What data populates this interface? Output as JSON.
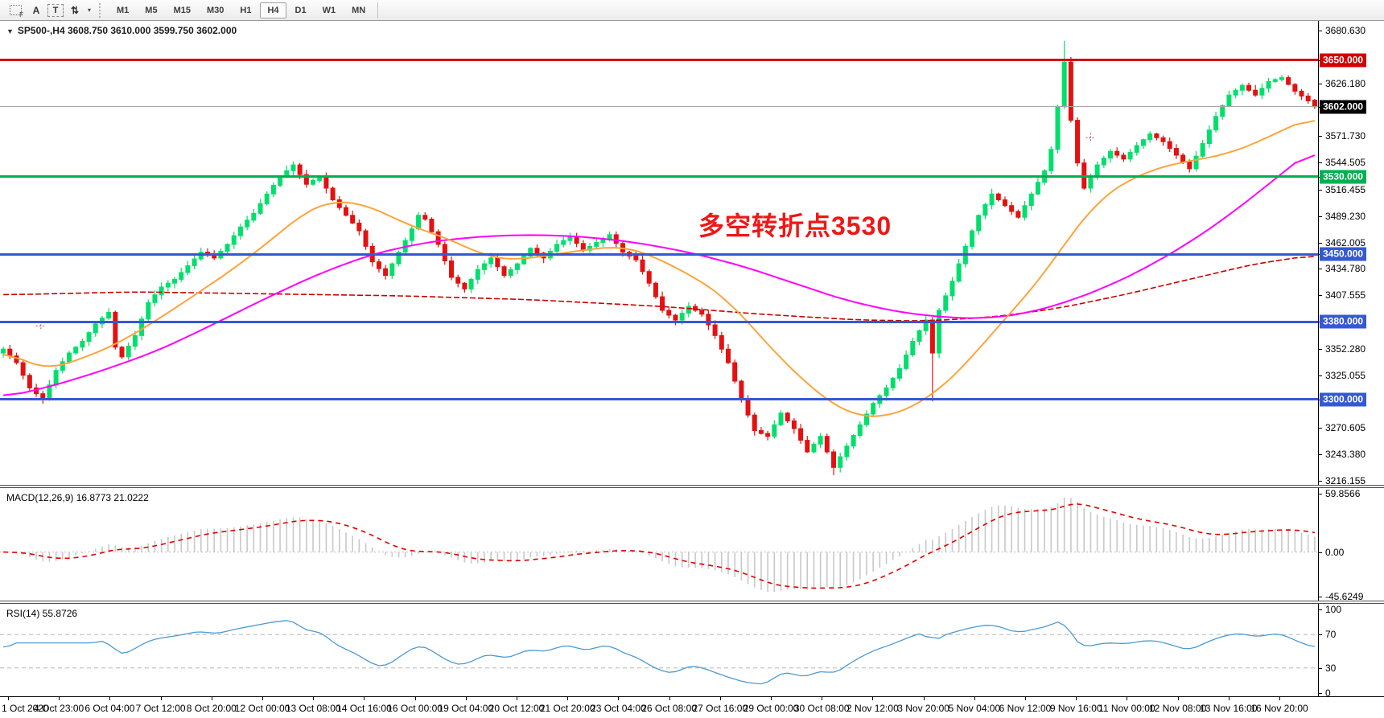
{
  "toolbar": {
    "icon_f": "F",
    "icon_a": "A",
    "icon_t": "T",
    "icon_arrows": "⇅",
    "caret": "▾",
    "timeframes": [
      {
        "label": "M1",
        "active": false
      },
      {
        "label": "M5",
        "active": false
      },
      {
        "label": "M15",
        "active": false
      },
      {
        "label": "M30",
        "active": false
      },
      {
        "label": "H1",
        "active": false
      },
      {
        "label": "H4",
        "active": true
      },
      {
        "label": "D1",
        "active": false
      },
      {
        "label": "W1",
        "active": false
      },
      {
        "label": "MN",
        "active": false
      }
    ]
  },
  "chart": {
    "title_triangle": "▼",
    "title": "SP500-,H4  3608.750 3610.000 3599.750 3602.000",
    "annotation": {
      "text": "多空转折点3530",
      "color": "#f01717"
    }
  },
  "chart_data": {
    "type": "candlestick",
    "symbol": "SP500-",
    "timeframe": "H4",
    "bars": 200,
    "ylim": [
      3211.2,
      3690.5
    ],
    "ohlc_current": {
      "open": 3608.75,
      "high": 3610.0,
      "low": 3599.75,
      "close": 3602.0
    },
    "colors": {
      "bull": "#00df6c",
      "bear": "#e41111",
      "ma_fast": "#ffa33c",
      "ma_mid": "#ff00ff",
      "ma_slow": "#cc0000",
      "macd_hist": "#c8c8c8",
      "macd_signal": "#e00000",
      "rsi_line": "#4a9ad4",
      "line_red": "#d40000",
      "line_green": "#00b050",
      "line_blue": "#3558d4",
      "line_current": "#a8a8a8"
    },
    "close_anchors": [
      [
        0,
        3352
      ],
      [
        2,
        3338
      ],
      [
        4,
        3312
      ],
      [
        6,
        3300
      ],
      [
        8,
        3330
      ],
      [
        10,
        3348
      ],
      [
        12,
        3360
      ],
      [
        14,
        3378
      ],
      [
        16,
        3390
      ],
      [
        17,
        3354
      ],
      [
        18,
        3344
      ],
      [
        20,
        3366
      ],
      [
        22,
        3400
      ],
      [
        24,
        3416
      ],
      [
        26,
        3424
      ],
      [
        28,
        3438
      ],
      [
        30,
        3452
      ],
      [
        32,
        3446
      ],
      [
        34,
        3460
      ],
      [
        36,
        3478
      ],
      [
        38,
        3492
      ],
      [
        40,
        3512
      ],
      [
        42,
        3530
      ],
      [
        44,
        3542
      ],
      [
        45,
        3532
      ],
      [
        46,
        3522
      ],
      [
        48,
        3530
      ],
      [
        50,
        3506
      ],
      [
        52,
        3490
      ],
      [
        54,
        3474
      ],
      [
        56,
        3442
      ],
      [
        58,
        3428
      ],
      [
        60,
        3452
      ],
      [
        62,
        3476
      ],
      [
        63,
        3490
      ],
      [
        64,
        3486
      ],
      [
        66,
        3460
      ],
      [
        68,
        3426
      ],
      [
        70,
        3414
      ],
      [
        72,
        3434
      ],
      [
        74,
        3446
      ],
      [
        76,
        3428
      ],
      [
        78,
        3440
      ],
      [
        80,
        3456
      ],
      [
        82,
        3446
      ],
      [
        84,
        3460
      ],
      [
        86,
        3468
      ],
      [
        88,
        3454
      ],
      [
        90,
        3462
      ],
      [
        92,
        3470
      ],
      [
        94,
        3452
      ],
      [
        96,
        3444
      ],
      [
        98,
        3420
      ],
      [
        100,
        3392
      ],
      [
        102,
        3382
      ],
      [
        104,
        3396
      ],
      [
        106,
        3388
      ],
      [
        108,
        3366
      ],
      [
        110,
        3338
      ],
      [
        112,
        3300
      ],
      [
        114,
        3268
      ],
      [
        116,
        3262
      ],
      [
        118,
        3286
      ],
      [
        120,
        3270
      ],
      [
        122,
        3246
      ],
      [
        124,
        3262
      ],
      [
        126,
        3230
      ],
      [
        128,
        3252
      ],
      [
        130,
        3274
      ],
      [
        132,
        3296
      ],
      [
        134,
        3312
      ],
      [
        136,
        3332
      ],
      [
        138,
        3360
      ],
      [
        140,
        3382
      ],
      [
        141,
        3348
      ],
      [
        142,
        3392
      ],
      [
        144,
        3422
      ],
      [
        146,
        3458
      ],
      [
        148,
        3490
      ],
      [
        150,
        3512
      ],
      [
        152,
        3500
      ],
      [
        154,
        3488
      ],
      [
        156,
        3512
      ],
      [
        158,
        3536
      ],
      [
        159,
        3558
      ],
      [
        160,
        3602
      ],
      [
        161,
        3648
      ],
      [
        162,
        3588
      ],
      [
        163,
        3544
      ],
      [
        164,
        3518
      ],
      [
        165,
        3530
      ],
      [
        166,
        3542
      ],
      [
        168,
        3556
      ],
      [
        170,
        3548
      ],
      [
        172,
        3562
      ],
      [
        174,
        3574
      ],
      [
        176,
        3566
      ],
      [
        178,
        3552
      ],
      [
        180,
        3538
      ],
      [
        182,
        3564
      ],
      [
        184,
        3592
      ],
      [
        186,
        3614
      ],
      [
        188,
        3624
      ],
      [
        190,
        3614
      ],
      [
        192,
        3628
      ],
      [
        194,
        3632
      ],
      [
        196,
        3618
      ],
      [
        198,
        3608
      ],
      [
        199,
        3602
      ]
    ],
    "wick_overrides": {
      "126": {
        "low": 3222
      },
      "141": {
        "low": 3298
      },
      "161": {
        "high": 3670
      }
    },
    "ma_fast_anchors": [
      [
        0,
        3352
      ],
      [
        6,
        3330
      ],
      [
        12,
        3342
      ],
      [
        18,
        3360
      ],
      [
        24,
        3385
      ],
      [
        30,
        3412
      ],
      [
        36,
        3440
      ],
      [
        42,
        3472
      ],
      [
        46,
        3495
      ],
      [
        50,
        3505
      ],
      [
        54,
        3503
      ],
      [
        58,
        3492
      ],
      [
        62,
        3478
      ],
      [
        66,
        3470
      ],
      [
        70,
        3458
      ],
      [
        74,
        3446
      ],
      [
        78,
        3444
      ],
      [
        82,
        3448
      ],
      [
        86,
        3452
      ],
      [
        90,
        3456
      ],
      [
        94,
        3458
      ],
      [
        98,
        3450
      ],
      [
        102,
        3436
      ],
      [
        106,
        3422
      ],
      [
        110,
        3402
      ],
      [
        114,
        3372
      ],
      [
        118,
        3342
      ],
      [
        122,
        3316
      ],
      [
        126,
        3294
      ],
      [
        130,
        3282
      ],
      [
        134,
        3282
      ],
      [
        138,
        3292
      ],
      [
        142,
        3310
      ],
      [
        146,
        3336
      ],
      [
        150,
        3368
      ],
      [
        154,
        3398
      ],
      [
        158,
        3430
      ],
      [
        162,
        3470
      ],
      [
        166,
        3504
      ],
      [
        170,
        3524
      ],
      [
        174,
        3536
      ],
      [
        178,
        3544
      ],
      [
        182,
        3548
      ],
      [
        186,
        3554
      ],
      [
        190,
        3564
      ],
      [
        194,
        3578
      ],
      [
        197,
        3586
      ],
      [
        199,
        3592
      ]
    ],
    "ma_mid_anchors": [
      [
        0,
        3302
      ],
      [
        8,
        3315
      ],
      [
        16,
        3332
      ],
      [
        24,
        3352
      ],
      [
        32,
        3378
      ],
      [
        40,
        3405
      ],
      [
        48,
        3430
      ],
      [
        56,
        3450
      ],
      [
        64,
        3462
      ],
      [
        72,
        3468
      ],
      [
        80,
        3470
      ],
      [
        88,
        3468
      ],
      [
        96,
        3462
      ],
      [
        104,
        3452
      ],
      [
        112,
        3438
      ],
      [
        120,
        3420
      ],
      [
        128,
        3402
      ],
      [
        136,
        3390
      ],
      [
        144,
        3384
      ],
      [
        150,
        3384
      ],
      [
        156,
        3390
      ],
      [
        162,
        3402
      ],
      [
        168,
        3418
      ],
      [
        174,
        3438
      ],
      [
        180,
        3462
      ],
      [
        186,
        3490
      ],
      [
        192,
        3522
      ],
      [
        196,
        3544
      ],
      [
        199,
        3560
      ]
    ],
    "ma_slow_anchors": [
      [
        0,
        3408
      ],
      [
        20,
        3411
      ],
      [
        40,
        3409
      ],
      [
        60,
        3407
      ],
      [
        80,
        3403
      ],
      [
        100,
        3396
      ],
      [
        115,
        3388
      ],
      [
        130,
        3382
      ],
      [
        140,
        3381
      ],
      [
        150,
        3385
      ],
      [
        160,
        3394
      ],
      [
        170,
        3408
      ],
      [
        180,
        3424
      ],
      [
        190,
        3440
      ],
      [
        199,
        3449
      ]
    ],
    "cross_markers": [
      {
        "bar": 5.7,
        "price": 3376
      },
      {
        "bar": 165,
        "price": 3570
      }
    ],
    "y_axis_ticks": [
      "3680.630",
      "3626.180",
      "3571.730",
      "3544.505",
      "3516.455",
      "3489.230",
      "3462.005",
      "3434.780",
      "3407.555",
      "3352.280",
      "3325.055",
      "3270.605",
      "3243.380",
      "3216.155"
    ],
    "price_badges": [
      {
        "value": "3650.000",
        "price": 3650,
        "color": "#d40000"
      },
      {
        "value": "3602.000",
        "price": 3602,
        "color": "#000000"
      },
      {
        "value": "3530.000",
        "price": 3530,
        "color": "#00b050"
      },
      {
        "value": "3450.000",
        "price": 3450,
        "color": "#3558d4"
      },
      {
        "value": "3380.000",
        "price": 3380,
        "color": "#3558d4"
      },
      {
        "value": "3300.000",
        "price": 3300,
        "color": "#3558d4"
      }
    ],
    "hlines": [
      {
        "price": 3650,
        "color": "#d40000",
        "thickness": 3
      },
      {
        "price": 3602,
        "color": "#a8a8a8",
        "thickness": 1
      },
      {
        "price": 3530,
        "color": "#00b050",
        "thickness": 3
      },
      {
        "price": 3450,
        "color": "#3558d4",
        "thickness": 3
      },
      {
        "price": 3380,
        "color": "#3558d4",
        "thickness": 3
      },
      {
        "price": 3300,
        "color": "#3558d4",
        "thickness": 3
      }
    ],
    "macd": {
      "label": "MACD(12,26,9) 16.8773 21.0222",
      "fast": 12,
      "slow": 26,
      "signal": 9,
      "scale_max": 59.8566,
      "scale_min": -45.6249,
      "ticks": [
        {
          "text": "59.8566",
          "value": 59.8566
        },
        {
          "text": "0.00",
          "value": 0
        },
        {
          "text": "-45.6249",
          "value": -45.6249
        }
      ]
    },
    "rsi": {
      "label": "RSI(14) 55.8726",
      "period": 14,
      "ticks": [
        {
          "text": "100",
          "value": 100
        },
        {
          "text": "70",
          "value": 70
        },
        {
          "text": "30",
          "value": 30
        },
        {
          "text": "0",
          "value": 0
        }
      ],
      "levels": [
        70,
        30
      ]
    },
    "x_labels": [
      "1 Oct 2020",
      "4 Oct 23:00",
      "6 Oct 04:00",
      "7 Oct 12:00",
      "8 Oct 20:00",
      "12 Oct 00:00",
      "13 Oct 08:00",
      "14 Oct 16:00",
      "16 Oct 00:00",
      "19 Oct 04:00",
      "20 Oct 12:00",
      "21 Oct 20:00",
      "23 Oct 04:00",
      "26 Oct 08:00",
      "27 Oct 16:00",
      "29 Oct 00:00",
      "30 Oct 08:00",
      "2 Nov 12:00",
      "3 Nov 20:00",
      "5 Nov 04:00",
      "6 Nov 12:00",
      "9 Nov 16:00",
      "11 Nov 00:00",
      "12 Nov 08:00",
      "13 Nov 16:00",
      "16 Nov 20:00"
    ]
  }
}
